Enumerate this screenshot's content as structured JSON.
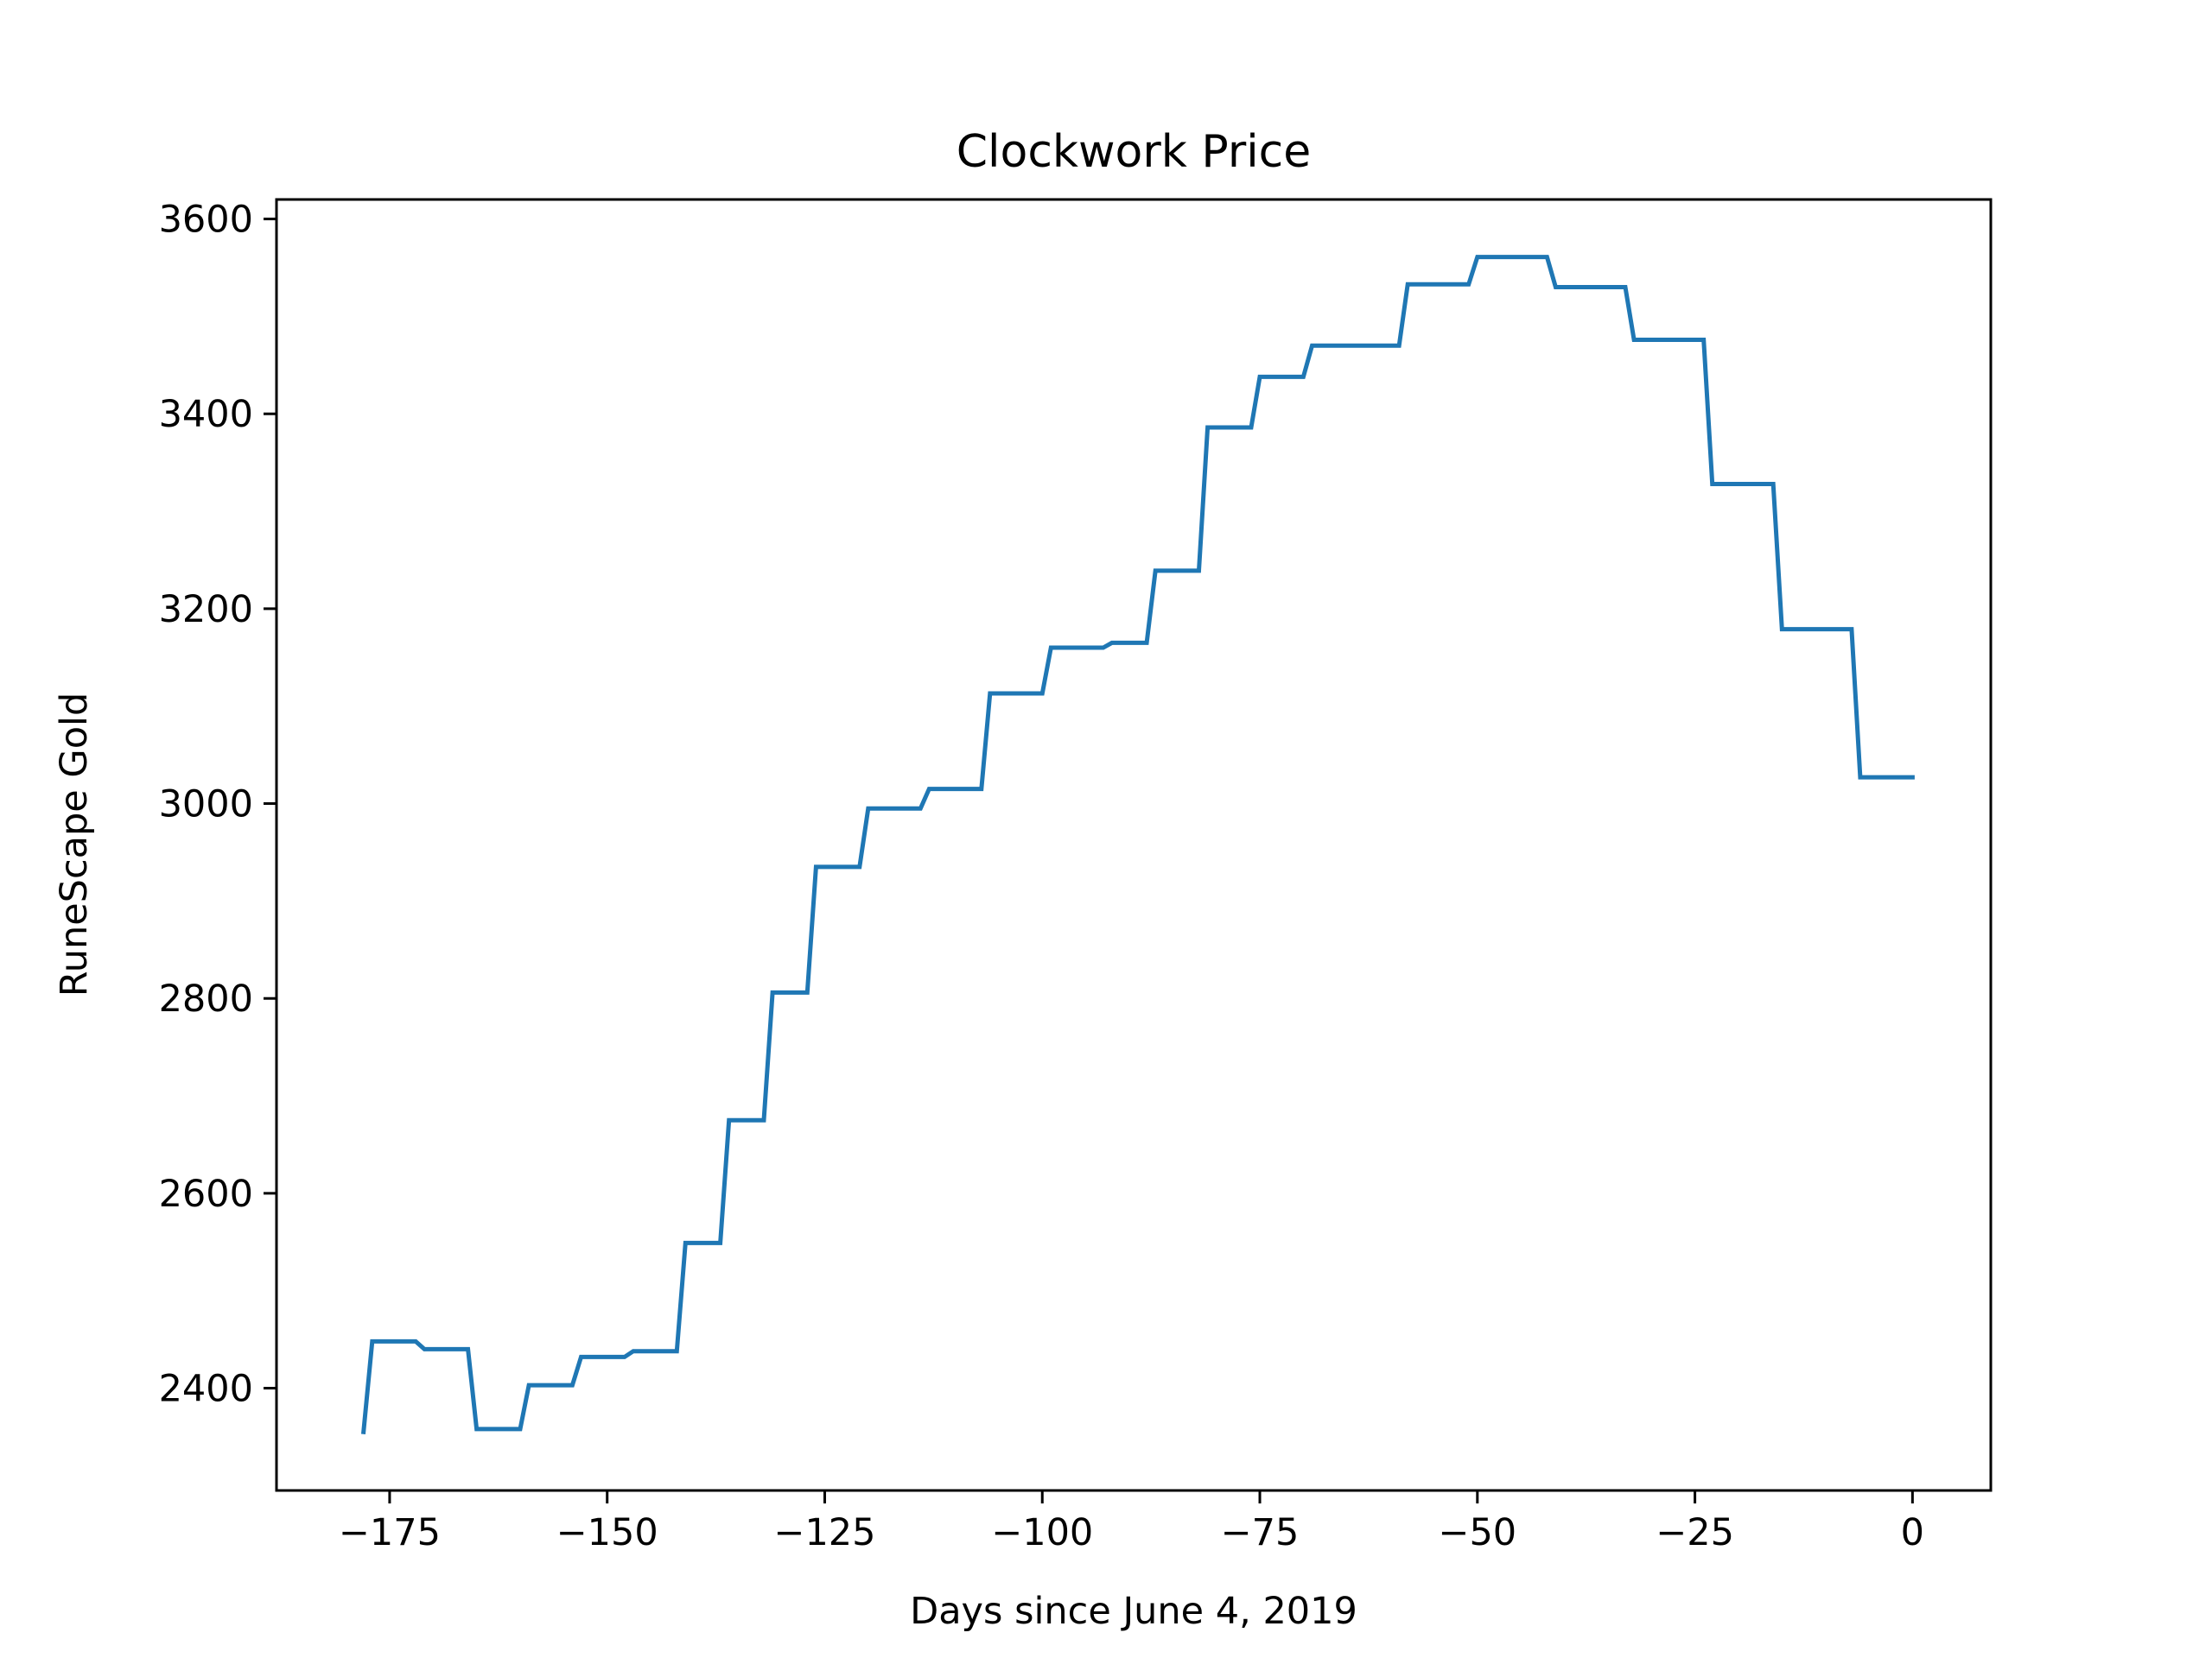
{
  "chart_data": {
    "type": "line",
    "title": "Clockwork Price",
    "xlabel": "Days since June 4, 2019",
    "ylabel": "RuneScape Gold",
    "xlim": [
      -188,
      9
    ],
    "ylim": [
      2295,
      3620
    ],
    "xticks": [
      -175,
      -150,
      -125,
      -100,
      -75,
      -50,
      -25,
      0
    ],
    "xtick_labels": [
      "−175",
      "−150",
      "−125",
      "−100",
      "−75",
      "−50",
      "−25",
      "0"
    ],
    "yticks": [
      2400,
      2600,
      2800,
      3000,
      3200,
      3400,
      3600
    ],
    "ytick_labels": [
      "2400",
      "2600",
      "2800",
      "3000",
      "3200",
      "3400",
      "3600"
    ],
    "grid": false,
    "legend": "none",
    "series": [
      {
        "color": "#1f77b4",
        "x": [
          -178,
          -177,
          -172,
          -171,
          -166,
          -165,
          -160,
          -159,
          -154,
          -153,
          -148,
          -147,
          -142,
          -141,
          -137,
          -136,
          -132,
          -131,
          -127,
          -126,
          -121,
          -120,
          -114,
          -113,
          -107,
          -106,
          -100,
          -99,
          -93,
          -92,
          -88,
          -87,
          -82,
          -81,
          -76,
          -75,
          -70,
          -69,
          -64,
          -63,
          -59,
          -58,
          -51,
          -50,
          -42,
          -41,
          -33,
          -32,
          -24,
          -23,
          -16,
          -15,
          -7,
          -6,
          0
        ],
        "values": [
          2355,
          2448,
          2448,
          2440,
          2440,
          2358,
          2358,
          2403,
          2403,
          2432,
          2432,
          2438,
          2438,
          2549,
          2549,
          2675,
          2675,
          2806,
          2806,
          2935,
          2935,
          2995,
          2995,
          3015,
          3015,
          3113,
          3113,
          3160,
          3160,
          3165,
          3165,
          3239,
          3239,
          3386,
          3386,
          3438,
          3438,
          3470,
          3470,
          3470,
          3470,
          3533,
          3533,
          3561,
          3561,
          3530,
          3530,
          3476,
          3476,
          3328,
          3328,
          3179,
          3179,
          3027,
          3027
        ]
      }
    ]
  }
}
